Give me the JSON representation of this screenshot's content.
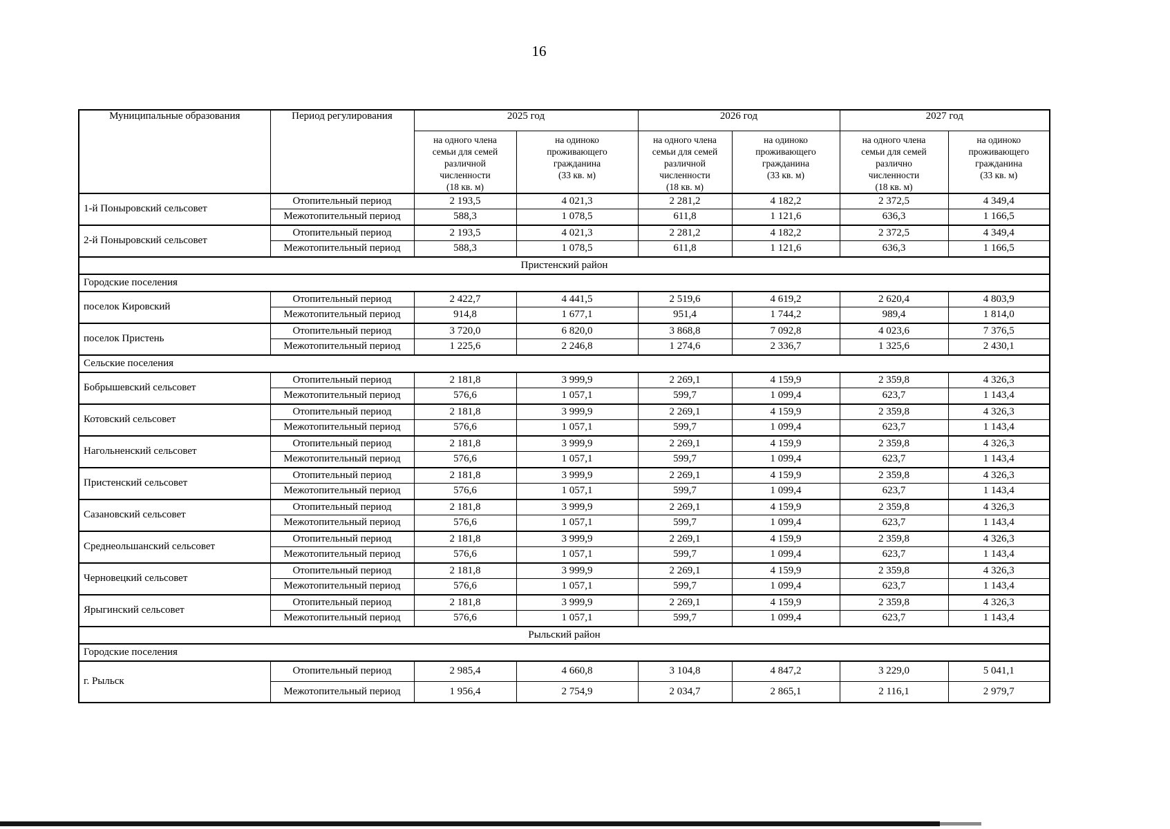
{
  "page": {
    "number": "16"
  },
  "table": {
    "header": {
      "municipality": "Муниципальные образования",
      "period": "Период регулирования",
      "years": [
        "2025 год",
        "2026 год",
        "2027 год"
      ],
      "subheaders": [
        "на одного члена\nсемьи для семей\nразличной\nчисленности\n(18 кв. м)",
        "на одиноко\nпроживающего\nгражданина\n(33 кв. м)",
        "на одного члена\nсемьи для семей\nразличной\nчисленности\n(18 кв. м)",
        "на одиноко\nпроживающего\nгражданина\n(33 кв. м)",
        "на одного члена\nсемьи для семей\nразлично\nчисленности\n(18 кв. м)",
        "на одиноко\nпроживающего\nгражданина\n(33 кв. м)"
      ]
    },
    "rows": [
      {
        "type": "entity",
        "name": "1-й Поныровский сельсовет",
        "periods": [
          {
            "label": "Отопительный период",
            "values": [
              "2 193,5",
              "4 021,3",
              "2 281,2",
              "4 182,2",
              "2 372,5",
              "4 349,4"
            ]
          },
          {
            "label": "Межотопительный период",
            "values": [
              "588,3",
              "1 078,5",
              "611,8",
              "1 121,6",
              "636,3",
              "1 166,5"
            ]
          }
        ]
      },
      {
        "type": "entity",
        "name": "2-й Поныровский сельсовет",
        "periods": [
          {
            "label": "Отопительный период",
            "values": [
              "2 193,5",
              "4 021,3",
              "2 281,2",
              "4 182,2",
              "2 372,5",
              "4 349,4"
            ]
          },
          {
            "label": "Межотопительный период",
            "values": [
              "588,3",
              "1 078,5",
              "611,8",
              "1 121,6",
              "636,3",
              "1 166,5"
            ]
          }
        ]
      },
      {
        "type": "section-center",
        "label": "Пристенский район"
      },
      {
        "type": "section-left",
        "label": "Городские поселения"
      },
      {
        "type": "entity",
        "name": "поселок Кировский",
        "periods": [
          {
            "label": "Отопительный период",
            "values": [
              "2 422,7",
              "4 441,5",
              "2 519,6",
              "4 619,2",
              "2 620,4",
              "4 803,9"
            ]
          },
          {
            "label": "Межотопительный период",
            "values": [
              "914,8",
              "1 677,1",
              "951,4",
              "1 744,2",
              "989,4",
              "1 814,0"
            ]
          }
        ]
      },
      {
        "type": "entity",
        "name": "поселок Пристень",
        "periods": [
          {
            "label": "Отопительный период",
            "values": [
              "3 720,0",
              "6 820,0",
              "3 868,8",
              "7 092,8",
              "4 023,6",
              "7 376,5"
            ]
          },
          {
            "label": "Межотопительный период",
            "values": [
              "1 225,6",
              "2 246,8",
              "1 274,6",
              "2 336,7",
              "1 325,6",
              "2 430,1"
            ]
          }
        ]
      },
      {
        "type": "section-left",
        "label": "Сельские поселения"
      },
      {
        "type": "entity",
        "name": "Бобрышевский сельсовет",
        "periods": [
          {
            "label": "Отопительный период",
            "values": [
              "2 181,8",
              "3 999,9",
              "2 269,1",
              "4 159,9",
              "2 359,8",
              "4 326,3"
            ]
          },
          {
            "label": "Межотопительный период",
            "values": [
              "576,6",
              "1 057,1",
              "599,7",
              "1 099,4",
              "623,7",
              "1 143,4"
            ]
          }
        ]
      },
      {
        "type": "entity",
        "name": "Котовский сельсовет",
        "periods": [
          {
            "label": "Отопительный период",
            "values": [
              "2 181,8",
              "3 999,9",
              "2 269,1",
              "4 159,9",
              "2 359,8",
              "4 326,3"
            ]
          },
          {
            "label": "Межотопительный период",
            "values": [
              "576,6",
              "1 057,1",
              "599,7",
              "1 099,4",
              "623,7",
              "1 143,4"
            ]
          }
        ]
      },
      {
        "type": "entity",
        "name": "Нагольненский сельсовет",
        "periods": [
          {
            "label": "Отопительный период",
            "values": [
              "2 181,8",
              "3 999,9",
              "2 269,1",
              "4 159,9",
              "2 359,8",
              "4 326,3"
            ]
          },
          {
            "label": "Межотопительный период",
            "values": [
              "576,6",
              "1 057,1",
              "599,7",
              "1 099,4",
              "623,7",
              "1 143,4"
            ]
          }
        ]
      },
      {
        "type": "entity",
        "name": "Пристенский сельсовет",
        "periods": [
          {
            "label": "Отопительный период",
            "values": [
              "2 181,8",
              "3 999,9",
              "2 269,1",
              "4 159,9",
              "2 359,8",
              "4 326,3"
            ]
          },
          {
            "label": "Межотопительный период",
            "values": [
              "576,6",
              "1 057,1",
              "599,7",
              "1 099,4",
              "623,7",
              "1 143,4"
            ]
          }
        ]
      },
      {
        "type": "entity",
        "name": "Сазановский сельсовет",
        "periods": [
          {
            "label": "Отопительный период",
            "values": [
              "2 181,8",
              "3 999,9",
              "2 269,1",
              "4 159,9",
              "2 359,8",
              "4 326,3"
            ]
          },
          {
            "label": "Межотопительный период",
            "values": [
              "576,6",
              "1 057,1",
              "599,7",
              "1 099,4",
              "623,7",
              "1 143,4"
            ]
          }
        ]
      },
      {
        "type": "entity",
        "name": "Среднеольшанский сельсовет",
        "periods": [
          {
            "label": "Отопительный период",
            "values": [
              "2 181,8",
              "3 999,9",
              "2 269,1",
              "4 159,9",
              "2 359,8",
              "4 326,3"
            ]
          },
          {
            "label": "Межотопительный период",
            "values": [
              "576,6",
              "1 057,1",
              "599,7",
              "1 099,4",
              "623,7",
              "1 143,4"
            ]
          }
        ]
      },
      {
        "type": "entity",
        "name": "Черновецкий сельсовет",
        "periods": [
          {
            "label": "Отопительный период",
            "values": [
              "2 181,8",
              "3 999,9",
              "2 269,1",
              "4 159,9",
              "2 359,8",
              "4 326,3"
            ]
          },
          {
            "label": "Межотопительный период",
            "values": [
              "576,6",
              "1 057,1",
              "599,7",
              "1 099,4",
              "623,7",
              "1 143,4"
            ]
          }
        ]
      },
      {
        "type": "entity",
        "name": "Ярыгинский сельсовет",
        "periods": [
          {
            "label": "Отопительный период",
            "values": [
              "2 181,8",
              "3 999,9",
              "2 269,1",
              "4 159,9",
              "2 359,8",
              "4 326,3"
            ]
          },
          {
            "label": "Межотопительный период",
            "values": [
              "576,6",
              "1 057,1",
              "599,7",
              "1 099,4",
              "623,7",
              "1 143,4"
            ]
          }
        ]
      },
      {
        "type": "section-center",
        "label": "Рыльский район"
      },
      {
        "type": "section-left",
        "label": "Городские поселения"
      },
      {
        "type": "entity",
        "name": "г. Рыльск",
        "periods": [
          {
            "label": "Отопительный период",
            "values": [
              "2 985,4",
              "4 660,8",
              "3 104,8",
              "4 847,2",
              "3 229,0",
              "5 041,1"
            ]
          },
          {
            "label": "Межотопительный период",
            "values": [
              "1 956,4",
              "2 754,9",
              "2 034,7",
              "2 865,1",
              "2 116,1",
              "2 979,7"
            ]
          }
        ]
      }
    ]
  }
}
